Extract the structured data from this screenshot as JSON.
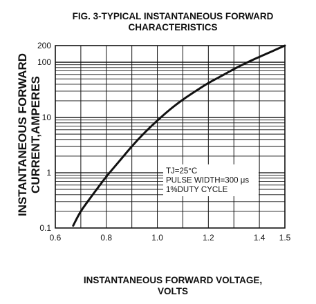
{
  "chart_data": {
    "type": "line",
    "title_line1": "FIG. 3-TYPICAL INSTANTANEOUS FORWARD",
    "title_line2": "CHARACTERISTICS",
    "xlabel_line1": "INSTANTANEOUS FORWARD VOLTAGE,",
    "xlabel_line2": "VOLTS",
    "ylabel_line1": "INSTANTANEOUS FORWARD",
    "ylabel_line2": "CURRENT,AMPERES",
    "x_scale": "linear",
    "y_scale": "log",
    "xlim": [
      0.6,
      1.5
    ],
    "ylim": [
      0.1,
      200
    ],
    "x_ticks": [
      "0.6",
      "0.8",
      "1.0",
      "1.2",
      "1.4",
      "1.5"
    ],
    "y_ticks": [
      "0.1",
      "1",
      "10",
      "100",
      "200"
    ],
    "grid": true,
    "series": [
      {
        "x": [
          0.67,
          0.7,
          0.75,
          0.8,
          0.85,
          0.9,
          0.95,
          1.0,
          1.05,
          1.1,
          1.15,
          1.2,
          1.25,
          1.3,
          1.35,
          1.4,
          1.45,
          1.5
        ],
        "y": [
          0.11,
          0.2,
          0.42,
          0.85,
          1.6,
          3.0,
          5.3,
          8.8,
          14,
          21,
          30,
          42,
          56,
          75,
          98,
          125,
          158,
          200
        ]
      }
    ],
    "annotation_lines": [
      "TJ=25°C",
      "PULSE WIDTH=300 μs",
      "1%DUTY CYCLE"
    ]
  }
}
